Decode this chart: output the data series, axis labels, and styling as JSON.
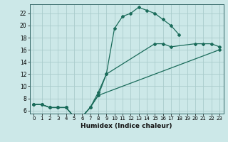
{
  "title": "",
  "xlabel": "Humidex (Indice chaleur)",
  "bg_color": "#cce8e8",
  "grid_color": "#aacccc",
  "line_color": "#1a6b5a",
  "xlim": [
    -0.5,
    23.5
  ],
  "ylim": [
    5.5,
    23.5
  ],
  "xticks": [
    0,
    1,
    2,
    3,
    4,
    5,
    6,
    7,
    8,
    9,
    10,
    11,
    12,
    13,
    14,
    15,
    16,
    17,
    18,
    19,
    20,
    21,
    22,
    23
  ],
  "yticks": [
    6,
    8,
    10,
    12,
    14,
    16,
    18,
    20,
    22
  ],
  "line1_x": [
    0,
    1,
    2,
    3,
    4,
    5,
    6,
    7,
    8,
    9,
    10,
    11,
    12,
    13,
    14,
    15,
    16,
    17,
    18
  ],
  "line1_y": [
    7,
    7,
    6.5,
    6.5,
    6.5,
    5,
    5,
    6.5,
    9,
    12,
    19.5,
    21.5,
    22,
    23,
    22.5,
    22,
    21,
    20,
    18.5
  ],
  "line2_x": [
    0,
    1,
    2,
    3,
    4,
    5,
    6,
    7,
    8,
    9,
    15,
    16,
    17,
    20,
    21,
    22,
    23
  ],
  "line2_y": [
    7,
    7,
    6.5,
    6.5,
    6.5,
    5,
    5,
    6.5,
    8.5,
    12,
    17,
    17,
    16.5,
    17,
    17,
    17,
    16.5
  ],
  "line3_x": [
    0,
    1,
    2,
    3,
    4,
    5,
    6,
    7,
    8,
    23
  ],
  "line3_y": [
    7,
    7,
    6.5,
    6.5,
    6.5,
    5,
    5,
    6.5,
    8.5,
    16
  ]
}
